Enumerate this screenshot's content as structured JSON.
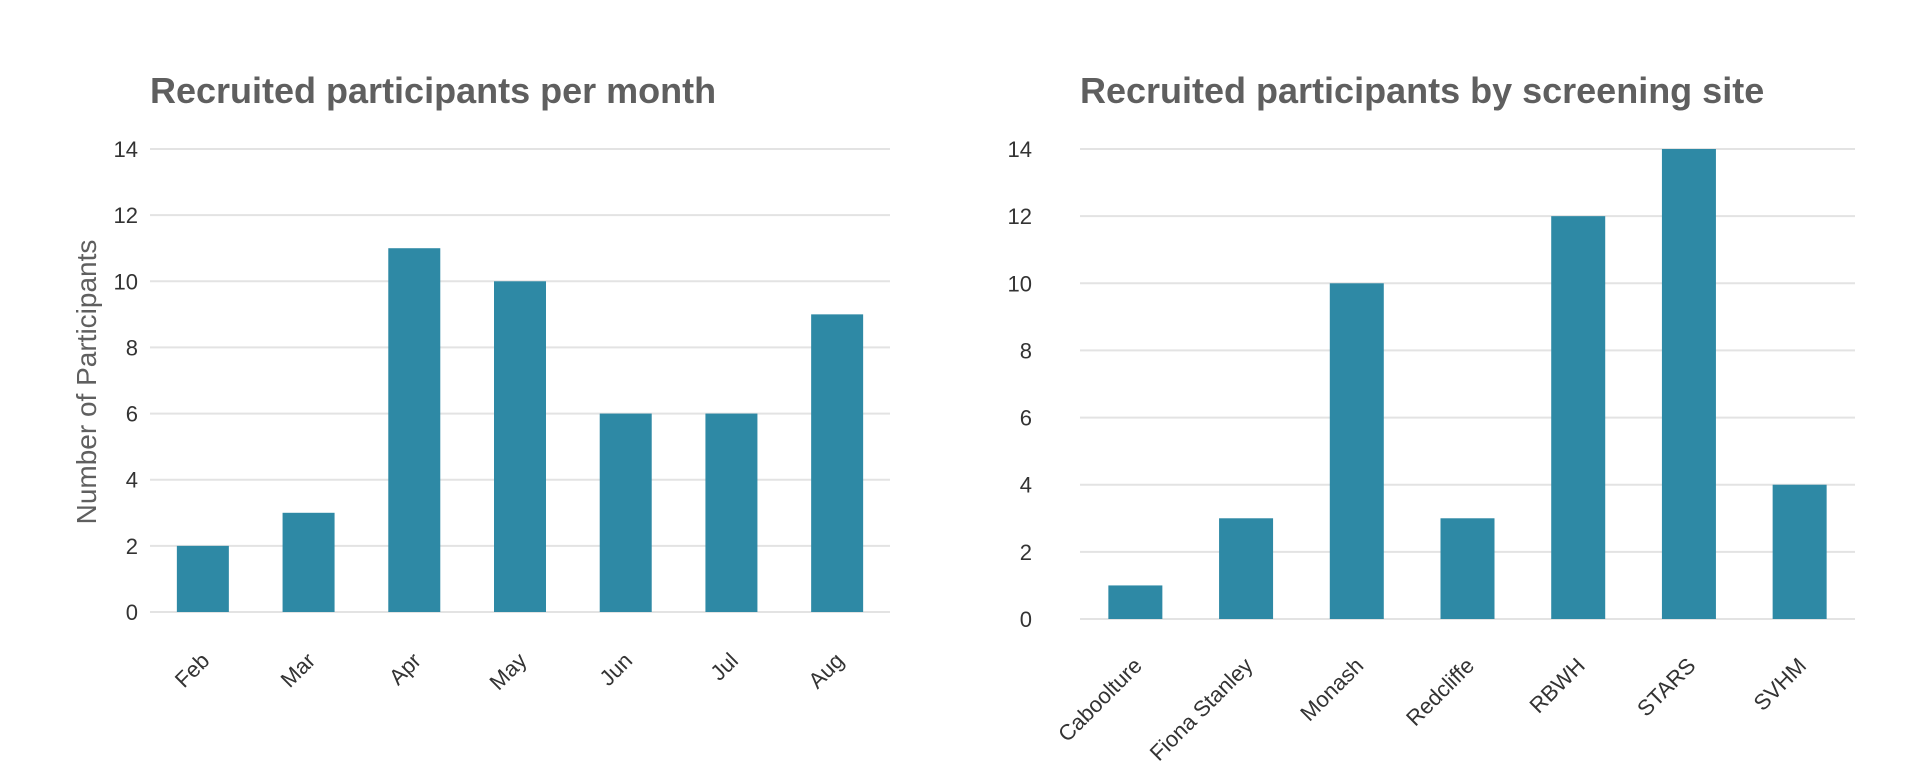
{
  "chart_data": [
    {
      "type": "bar",
      "title": "Recruited participants per month",
      "xlabel": "",
      "ylabel": "Number of Participants",
      "categories": [
        "Feb",
        "Mar",
        "Apr",
        "May",
        "Jun",
        "Jul",
        "Aug"
      ],
      "values": [
        2,
        3,
        11,
        10,
        6,
        6,
        9
      ],
      "ylim": [
        0,
        14
      ],
      "yticks": [
        0,
        2,
        4,
        6,
        8,
        10,
        12,
        14
      ],
      "grid": true,
      "bar_color": "#2e89a5"
    },
    {
      "type": "bar",
      "title": "Recruited participants by screening site",
      "xlabel": "",
      "ylabel": "",
      "categories": [
        "Caboolture",
        "Fiona Stanley",
        "Monash",
        "Redcliffe",
        "RBWH",
        "STARS",
        "SVHM"
      ],
      "values": [
        1,
        3,
        10,
        3,
        12,
        14,
        4
      ],
      "ylim": [
        0,
        14
      ],
      "yticks": [
        0,
        2,
        4,
        6,
        8,
        10,
        12,
        14
      ],
      "grid": true,
      "bar_color": "#2e89a5"
    }
  ]
}
